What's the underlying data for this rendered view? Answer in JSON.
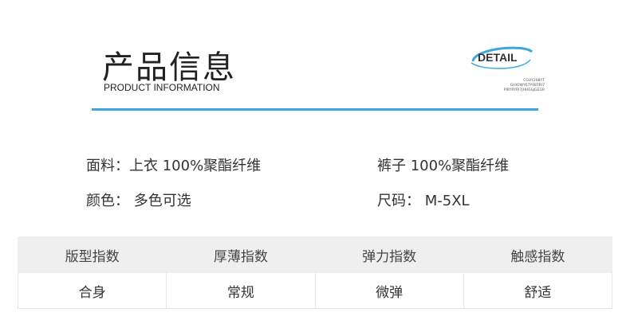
{
  "header": {
    "title": "产品信息",
    "subtitle": "PRODUCT INFORMATION",
    "logo": {
      "text": "DETAIL",
      "small_lines": [
        "CGUY208YT",
        "GHIOWY67Y08TRI7",
        "PIRYRYRI7JHHE&JGEGR"
      ],
      "color": "#3ba7dd"
    }
  },
  "info": {
    "fabric": "面料：上衣 100%聚酯纤维",
    "pants": "裤子 100%聚酯纤维",
    "color": "颜色：  多色可选",
    "size": "尺码：  M-5XL"
  },
  "table": {
    "headers": [
      "版型指数",
      "厚薄指数",
      "弹力指数",
      "触感指数"
    ],
    "values": [
      "合身",
      "常规",
      "微弹",
      "舒适"
    ]
  }
}
